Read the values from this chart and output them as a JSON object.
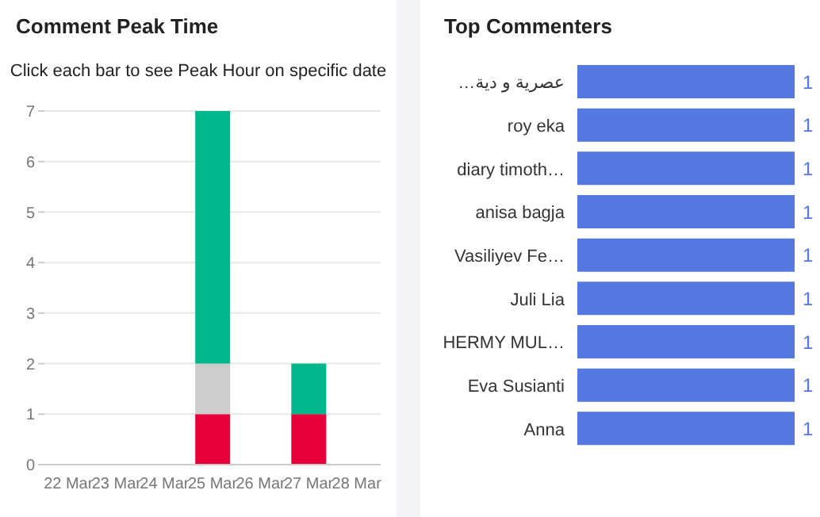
{
  "chart_data": [
    {
      "type": "bar",
      "title": "Comment Peak Time",
      "subtitle": "Click each bar to see Peak Hour on specific date",
      "categories": [
        "22 Mar",
        "23 Mar",
        "24 Mar",
        "25 Mar",
        "26 Mar",
        "27 Mar",
        "28 Mar"
      ],
      "stacked": true,
      "series": [
        {
          "color": "#e8003a",
          "values": [
            null,
            null,
            null,
            1,
            null,
            1,
            null
          ]
        },
        {
          "color": "#cccccc",
          "values": [
            null,
            null,
            null,
            1,
            null,
            null,
            null
          ]
        },
        {
          "color": "#00b68a",
          "values": [
            null,
            null,
            null,
            5,
            null,
            1,
            null
          ]
        }
      ],
      "ylim": [
        0,
        7
      ],
      "yticks": [
        0,
        1,
        2,
        3,
        4,
        5,
        6,
        7
      ],
      "grid": "y"
    },
    {
      "type": "bar",
      "orientation": "horizontal",
      "title": "Top Commenters",
      "categories": [
        "عصرية و دية…",
        "roy eka",
        "diary timoth…",
        "anisa bagja",
        "Vasiliyev Fe…",
        "Juli Lia",
        "HERMY MUL…",
        "Eva Susianti",
        "Anna"
      ],
      "values": [
        1,
        1,
        1,
        1,
        1,
        1,
        1,
        1,
        1
      ],
      "color": "#5577e0",
      "data_labels": true
    }
  ]
}
